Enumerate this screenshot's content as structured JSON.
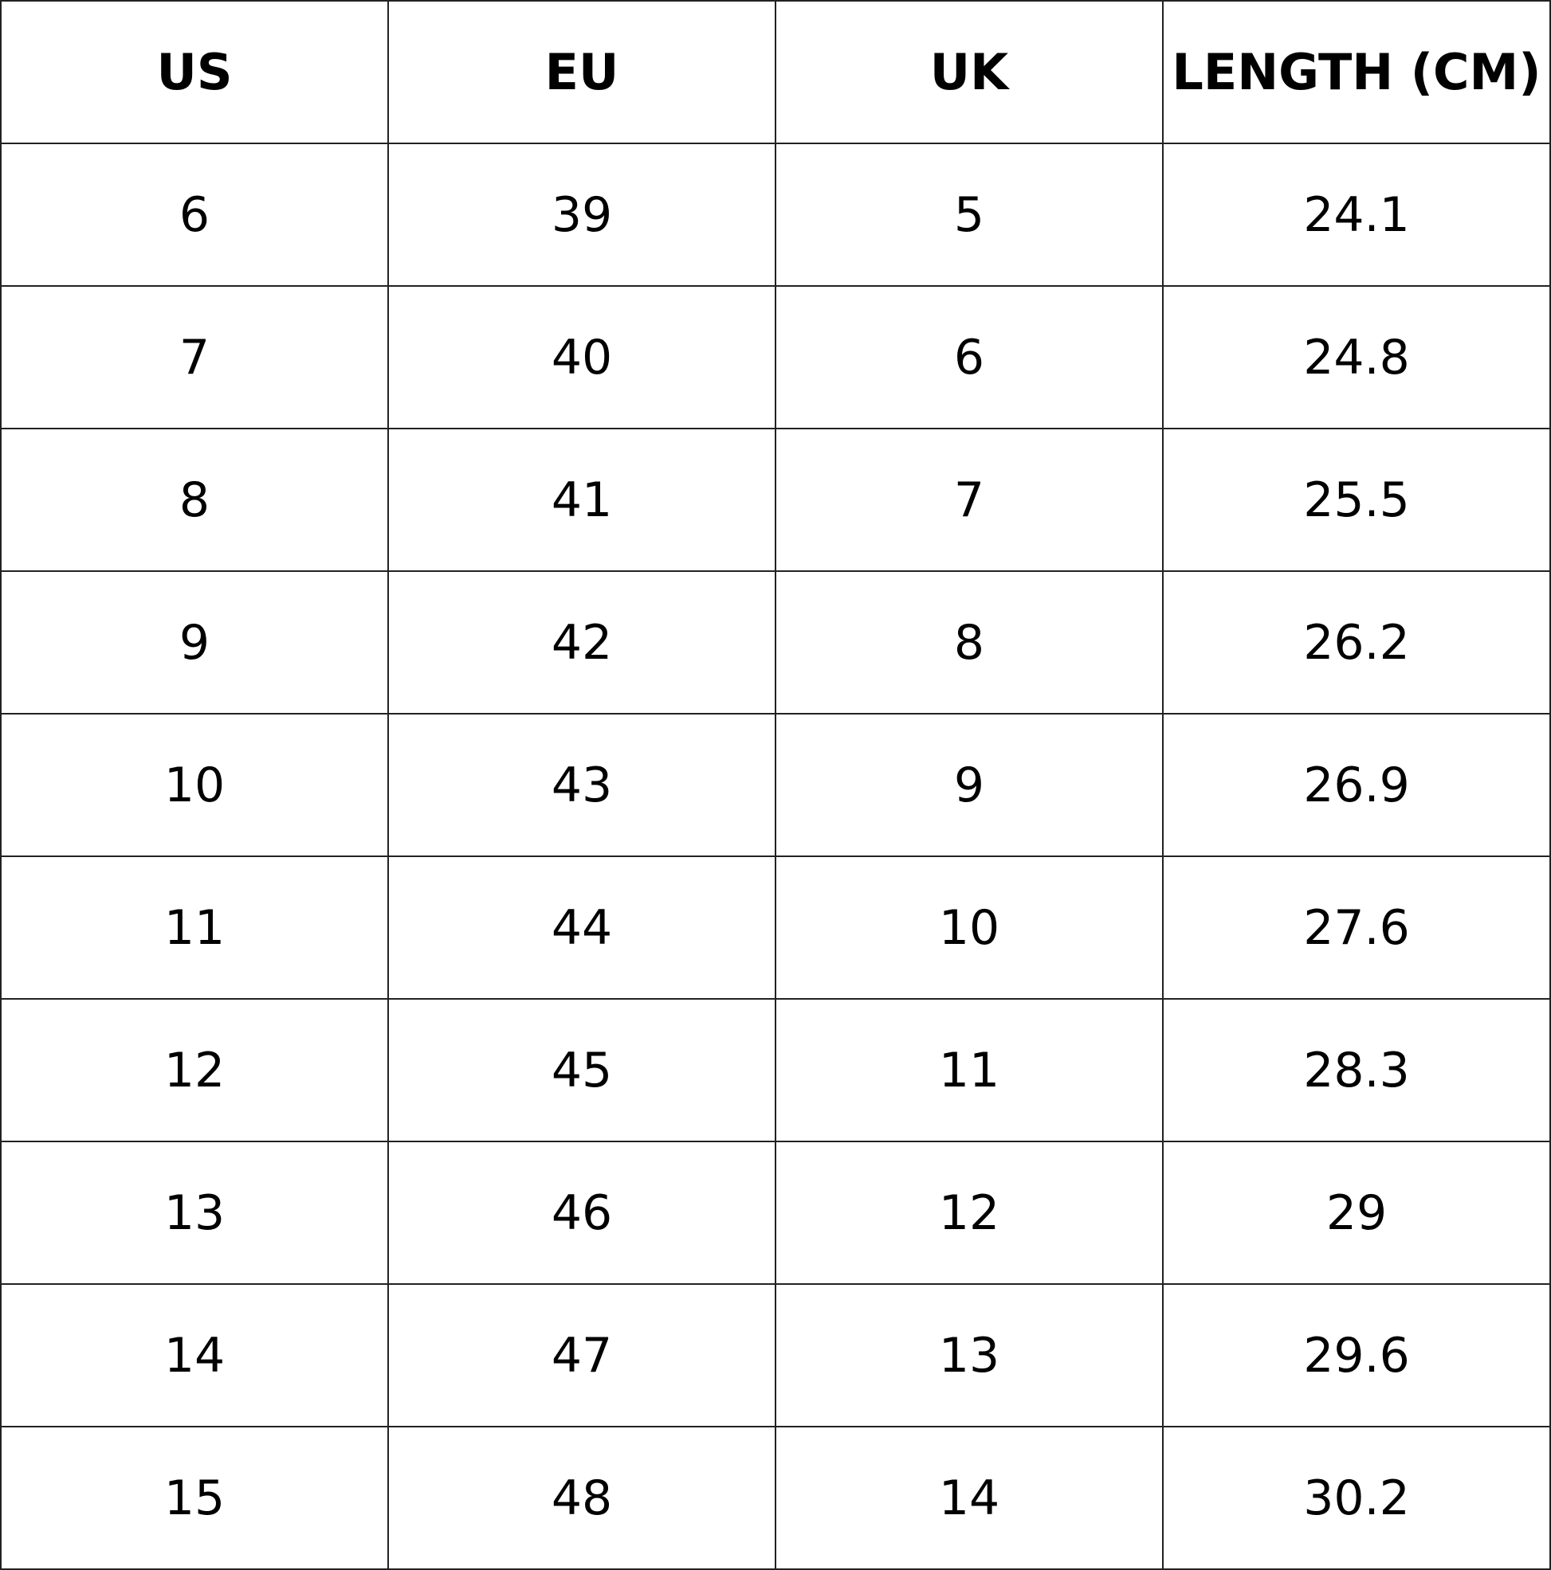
{
  "table": {
    "headers": [
      "US",
      "EU",
      "UK",
      "LENGTH (CM)"
    ],
    "rows": [
      [
        "6",
        "39",
        "5",
        "24.1"
      ],
      [
        "7",
        "40",
        "6",
        "24.8"
      ],
      [
        "8",
        "41",
        "7",
        "25.5"
      ],
      [
        "9",
        "42",
        "8",
        "26.2"
      ],
      [
        "10",
        "43",
        "9",
        "26.9"
      ],
      [
        "11",
        "44",
        "10",
        "27.6"
      ],
      [
        "12",
        "45",
        "11",
        "28.3"
      ],
      [
        "13",
        "46",
        "12",
        "29"
      ],
      [
        "14",
        "47",
        "13",
        "29.6"
      ],
      [
        "15",
        "48",
        "14",
        "30.2"
      ]
    ]
  }
}
